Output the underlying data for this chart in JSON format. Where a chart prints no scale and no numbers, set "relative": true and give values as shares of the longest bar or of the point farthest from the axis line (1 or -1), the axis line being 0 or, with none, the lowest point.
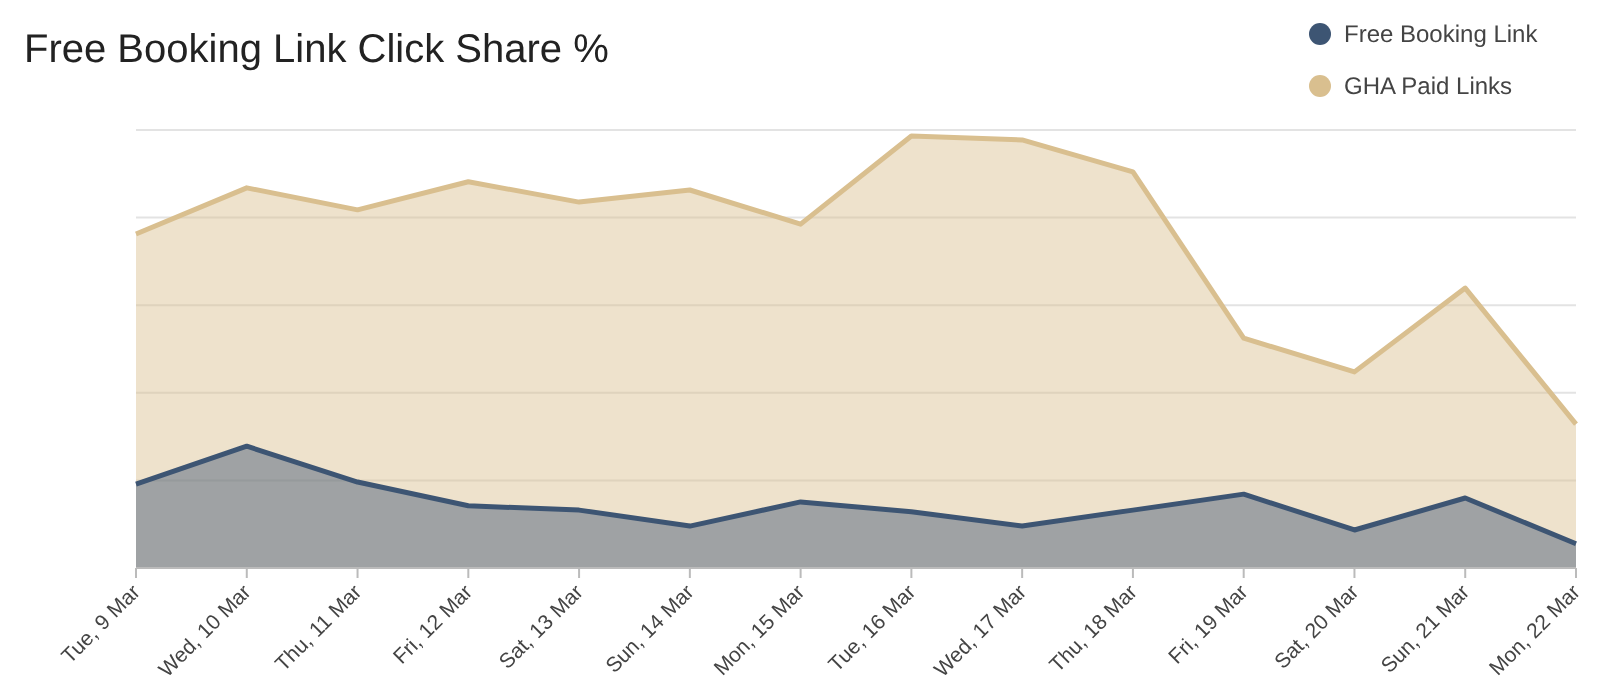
{
  "chart_data": {
    "type": "area",
    "title": "Free Booking Link Click Share %",
    "relative": true,
    "grid": "y",
    "legend": "top right",
    "marker": "none",
    "categories": [
      "Tue, 9 Mar",
      "Wed, 10 Mar",
      "Thu, 11 Mar",
      "Fri, 12 Mar",
      "Sat, 13 Mar",
      "Sun, 14 Mar",
      "Mon, 15 Mar",
      "Tue, 16 Mar",
      "Wed, 17 Mar",
      "Thu, 18 Mar",
      "Fri, 19 Mar",
      "Sat, 20 Mar",
      "Sun, 21 Mar",
      "Mon, 22 Mar"
    ],
    "series": [
      {
        "name": "GHA Paid Links",
        "color": "#d9bf8f",
        "values": [
          0.773,
          0.88,
          0.829,
          0.894,
          0.847,
          0.875,
          0.796,
          1,
          0.991,
          0.917,
          0.532,
          0.454,
          0.648,
          0.333
        ]
      },
      {
        "name": "Free Booking Link",
        "color": "#3d5573",
        "values": [
          0.194,
          0.282,
          0.199,
          0.144,
          0.134,
          0.097,
          0.153,
          0.13,
          0.097,
          0.134,
          0.171,
          0.088,
          0.162,
          0.056
        ]
      }
    ]
  }
}
